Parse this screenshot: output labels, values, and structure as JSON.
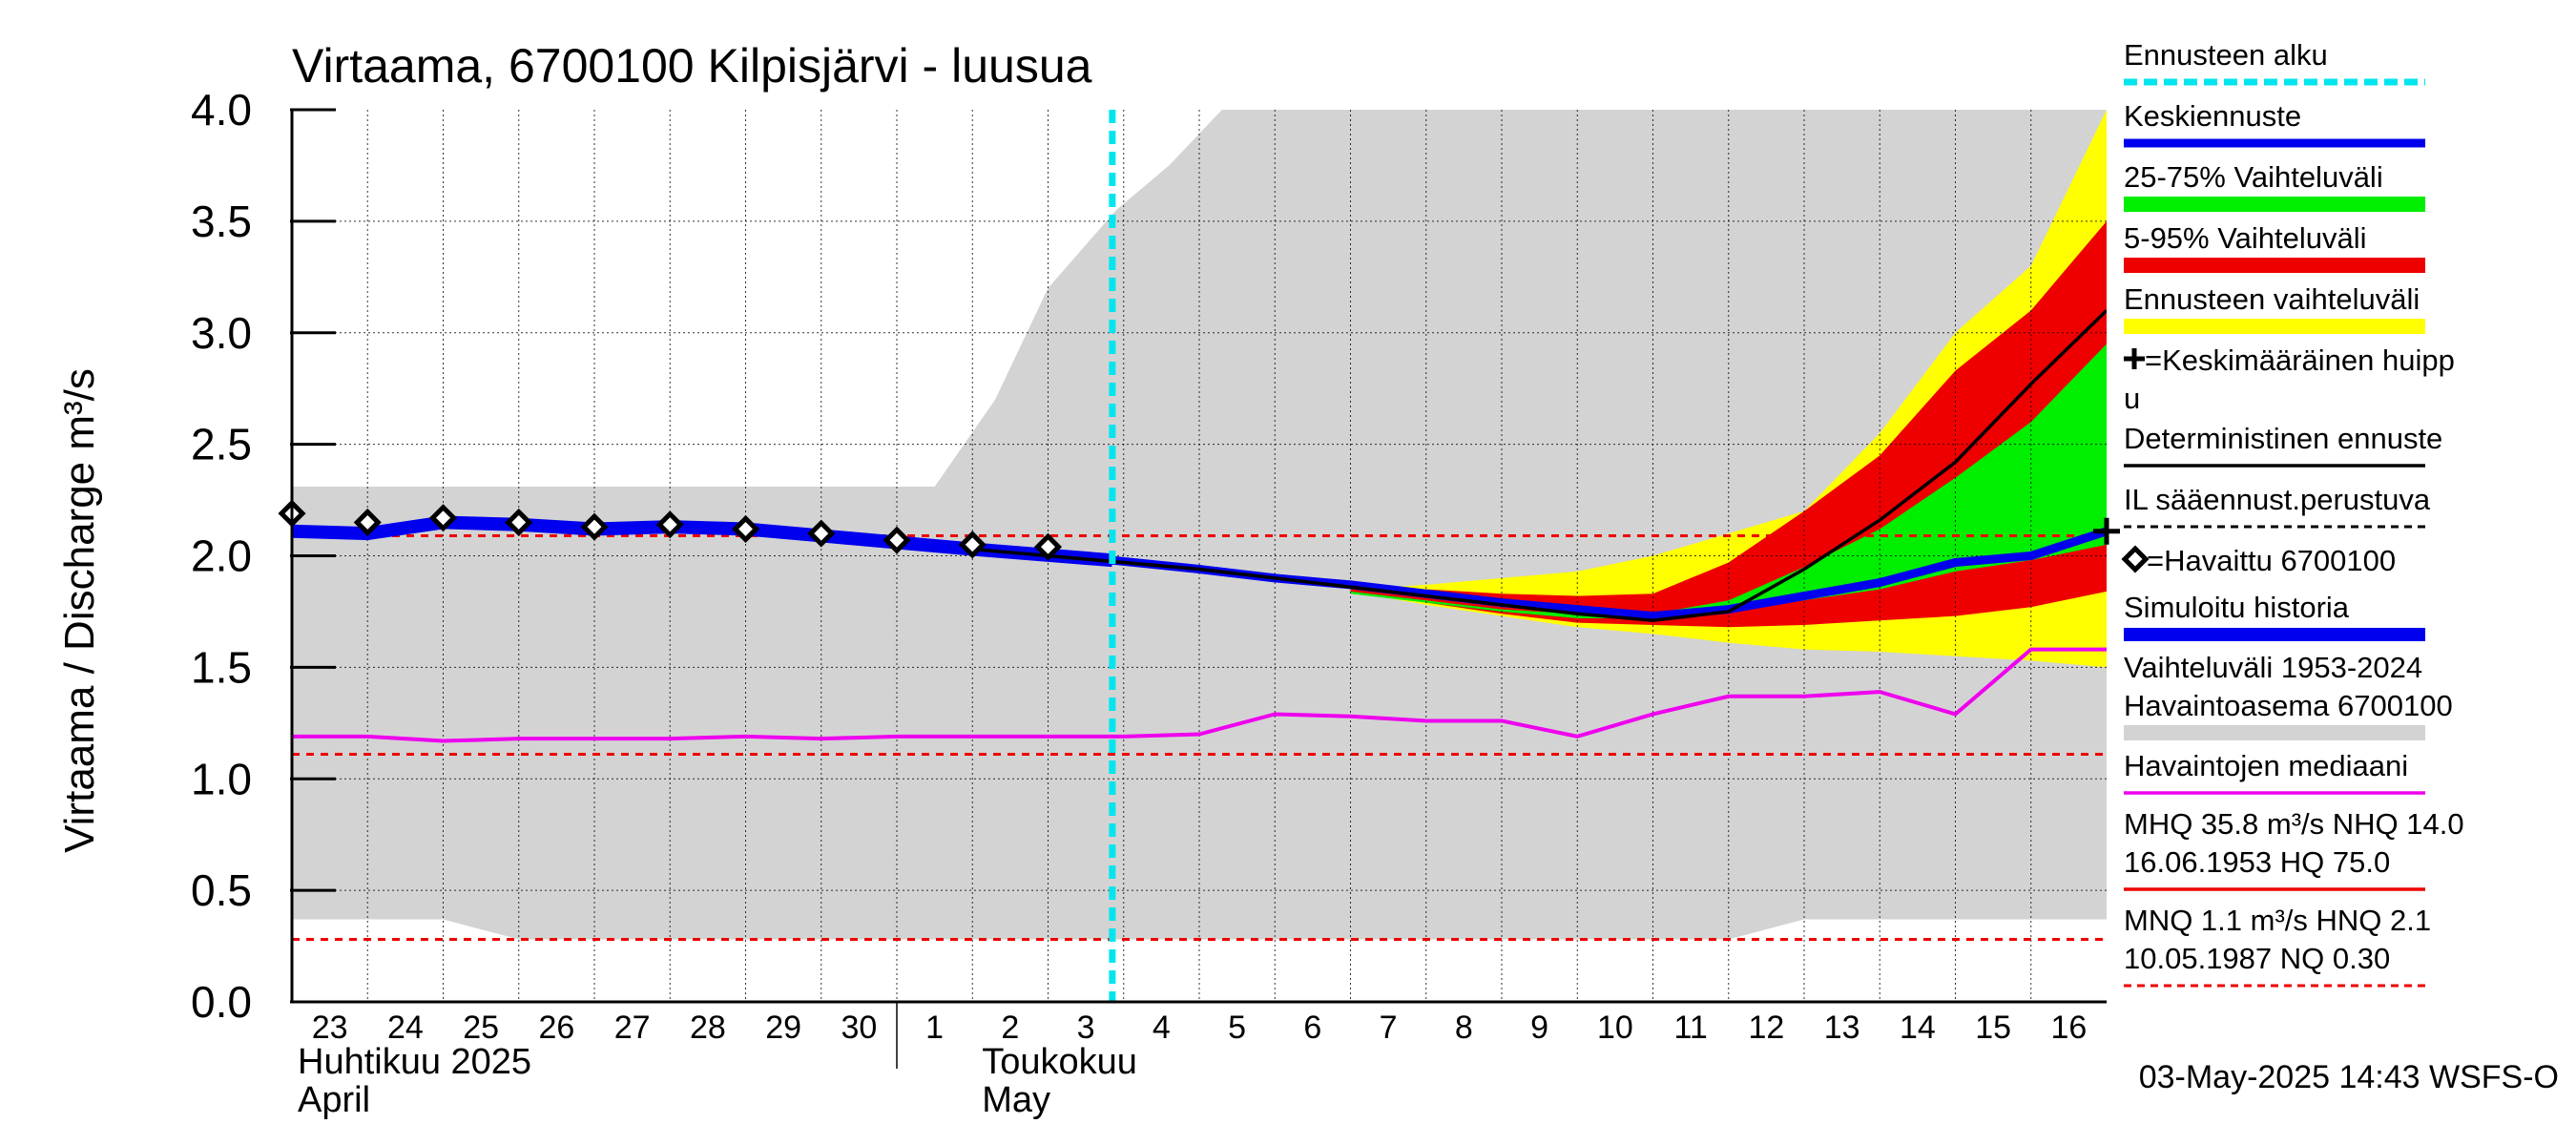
{
  "chart_data": {
    "type": "line",
    "title": "Virtaama, 6700100 Kilpisjärvi - luusua",
    "ylabel": "Virtaama / Discharge    m³/s",
    "ylim": [
      0,
      4.0
    ],
    "y_ticks": [
      "0.0",
      "0.5",
      "1.0",
      "1.5",
      "2.0",
      "2.5",
      "3.0",
      "3.5",
      "4.0"
    ],
    "x_tick_labels": [
      "23",
      "24",
      "25",
      "26",
      "27",
      "28",
      "29",
      "30",
      "1",
      "2",
      "3",
      "4",
      "5",
      "6",
      "7",
      "8",
      "9",
      "10",
      "11",
      "12",
      "13",
      "14",
      "15",
      "16"
    ],
    "month_labels": {
      "april_fi": "Huhtikuu  2025",
      "april_en": "April",
      "may_fi": "Toukokuu",
      "may_en": "May"
    },
    "grid": true,
    "forecast_start_day": 10.85,
    "reference_lines": [
      2.09,
      1.11,
      0.28
    ],
    "history_range": {
      "x": [
        0,
        2,
        3,
        7,
        7.9,
        8.5,
        9.3,
        10,
        10.9,
        11.6,
        12.3,
        13,
        14,
        15,
        16,
        17,
        18,
        19,
        20,
        21,
        22,
        23,
        24
      ],
      "upper": [
        2.31,
        2.31,
        2.31,
        2.31,
        2.31,
        2.31,
        2.7,
        3.2,
        3.55,
        3.75,
        4.0,
        4.0,
        4.0,
        4.0,
        4.0,
        4.0,
        4.0,
        4.0,
        4.0,
        4.0,
        4.0,
        4.0,
        4.0
      ],
      "lower": [
        0.37,
        0.37,
        0.28,
        0.28,
        0.28,
        0.28,
        0.28,
        0.28,
        0.28,
        0.28,
        0.28,
        0.28,
        0.28,
        0.28,
        0.28,
        0.28,
        0.28,
        0.28,
        0.37,
        0.37,
        0.37,
        0.37,
        0.37
      ]
    },
    "forecast_x": [
      14,
      15,
      16,
      17,
      18,
      19,
      20,
      21,
      22,
      23,
      24
    ],
    "ensemble_range": {
      "upper": [
        1.85,
        1.87,
        1.9,
        1.93,
        2.0,
        2.1,
        2.2,
        2.55,
        3.0,
        3.3,
        4.0
      ],
      "lower": [
        1.84,
        1.78,
        1.73,
        1.68,
        1.65,
        1.61,
        1.58,
        1.57,
        1.55,
        1.53,
        1.5
      ]
    },
    "range_5_95": {
      "upper": [
        1.85,
        1.85,
        1.83,
        1.82,
        1.83,
        1.97,
        2.2,
        2.45,
        2.83,
        3.1,
        3.5
      ],
      "lower": [
        1.84,
        1.79,
        1.74,
        1.7,
        1.69,
        1.68,
        1.69,
        1.71,
        1.73,
        1.77,
        1.84
      ]
    },
    "range_25_75": {
      "upper": [
        1.84,
        1.8,
        1.76,
        1.74,
        1.74,
        1.8,
        1.95,
        2.12,
        2.35,
        2.6,
        2.95
      ],
      "lower": [
        1.83,
        1.79,
        1.75,
        1.72,
        1.72,
        1.75,
        1.8,
        1.85,
        1.93,
        1.98,
        2.05
      ]
    },
    "observed": {
      "x": [
        0,
        1,
        2,
        3,
        4,
        5,
        6,
        7,
        8,
        9,
        10
      ],
      "y": [
        2.19,
        2.15,
        2.17,
        2.15,
        2.13,
        2.14,
        2.12,
        2.1,
        2.07,
        2.05,
        2.04
      ]
    },
    "simulated_history": {
      "x": [
        0,
        1,
        2,
        3,
        4,
        5,
        6,
        7,
        8,
        9,
        10.85
      ],
      "y": [
        2.11,
        2.1,
        2.15,
        2.14,
        2.12,
        2.13,
        2.12,
        2.09,
        2.06,
        2.03,
        1.98
      ]
    },
    "mean_forecast": {
      "x": [
        10.85,
        12,
        13,
        14,
        15,
        16,
        17,
        18,
        19,
        20,
        21,
        22,
        23,
        24
      ],
      "y": [
        1.98,
        1.94,
        1.9,
        1.87,
        1.83,
        1.79,
        1.76,
        1.73,
        1.76,
        1.82,
        1.88,
        1.97,
        2.0,
        2.11
      ]
    },
    "deterministic_forecast": {
      "x": [
        9,
        10,
        11,
        12,
        13,
        14,
        15,
        16,
        17,
        18,
        19,
        20,
        21,
        22,
        23,
        24
      ],
      "y": [
        2.03,
        2.0,
        1.97,
        1.94,
        1.9,
        1.86,
        1.82,
        1.78,
        1.74,
        1.71,
        1.75,
        1.94,
        2.16,
        2.42,
        2.77,
        3.1
      ]
    },
    "median": {
      "x": [
        0,
        1,
        2,
        3,
        4,
        5,
        6,
        7,
        8,
        9,
        10,
        11,
        12,
        13,
        14,
        15,
        16,
        17,
        18,
        19,
        20,
        21,
        22,
        23,
        24
      ],
      "y": [
        1.19,
        1.19,
        1.17,
        1.18,
        1.18,
        1.18,
        1.19,
        1.18,
        1.19,
        1.19,
        1.19,
        1.19,
        1.2,
        1.29,
        1.28,
        1.26,
        1.26,
        1.19,
        1.29,
        1.37,
        1.37,
        1.39,
        1.29,
        1.58,
        1.58
      ]
    },
    "mean_peak": {
      "x": 24,
      "y": 2.11
    },
    "legend_position": "right",
    "legend": [
      {
        "label": "Ennusteen alku",
        "color": "#00e5ee",
        "style": "dashed"
      },
      {
        "label": "Keskiennuste",
        "color": "#0000ee",
        "style": "line"
      },
      {
        "label": "25-75% Vaihteluväli",
        "color": "#00ee00",
        "style": "band"
      },
      {
        "label": "5-95% Vaihteluväli",
        "color": "#ee0000",
        "style": "band"
      },
      {
        "label": "Ennusteen vaihteluväli",
        "color": "#ffff00",
        "style": "band"
      },
      {
        "label": "=Keskimääräinen huipp",
        "label2": "u",
        "color": "#000000",
        "style": "none"
      },
      {
        "label": "Deterministinen ennuste",
        "color": "#000000",
        "style": "line"
      },
      {
        "label": "IL sääennust.perustuva",
        "color": "#000000",
        "style": "dashed"
      },
      {
        "label": "=Havaittu 6700100",
        "color": "#000000",
        "style": "none"
      },
      {
        "label": "Simuloitu historia",
        "color": "#0000ee",
        "style": "thick"
      },
      {
        "label": "Vaihteluväli 1953-2024",
        "label2": " Havaintoasema 6700100",
        "color": "#d3d3d3",
        "style": "band"
      },
      {
        "label": "Havaintojen mediaani",
        "color": "#ee00ee",
        "style": "line"
      },
      {
        "label": "MHQ 35.8 m³/s NHQ 14.0",
        "label2": "16.06.1953 HQ 75.0",
        "color": "#ee0000",
        "style": "line"
      },
      {
        "label": "MNQ  1.1 m³/s HNQ  2.1",
        "label2": "10.05.1987 NQ 0.30",
        "color": "#ee0000",
        "style": "dashed"
      }
    ],
    "footer": "03-May-2025 14:43 WSFS-O"
  }
}
